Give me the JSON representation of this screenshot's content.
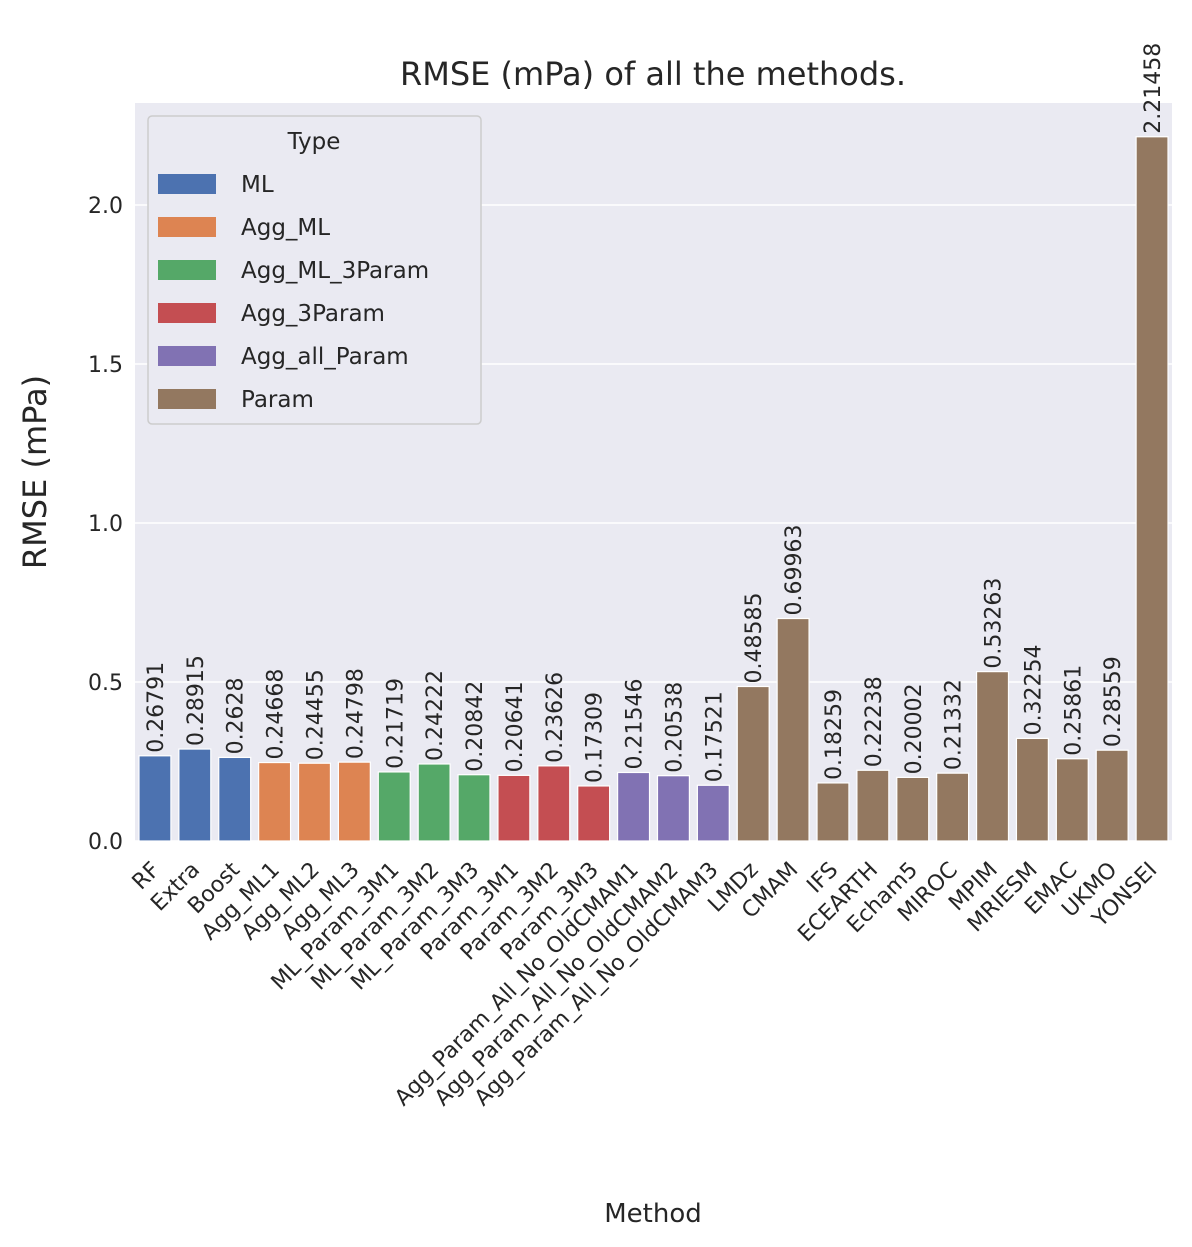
{
  "chart_data": {
    "type": "bar",
    "title": "RMSE (mPa) of all the methods.",
    "xlabel": "Method",
    "ylabel": "RMSE (mPa)",
    "ylim": [
      0,
      2.32
    ],
    "yticks": [
      "0.0",
      "0.5",
      "1.0",
      "1.5",
      "2.0"
    ],
    "grid": true,
    "legend": {
      "title": "Type",
      "placement": "top-left",
      "entries": [
        "ML",
        "Agg_ML",
        "Agg_ML_3Param",
        "Agg_3Param",
        "Agg_all_Param",
        "Param"
      ]
    },
    "type_colors": {
      "ML": "#4c72b0",
      "Agg_ML": "#dd8452",
      "Agg_ML_3Param": "#55a868",
      "Agg_3Param": "#c44e52",
      "Agg_all_Param": "#8172b3",
      "Param": "#937860"
    },
    "categories": [
      "RF",
      "Extra",
      "Boost",
      "Agg_ML1",
      "Agg_ML2",
      "Agg_ML3",
      "ML_Param_3M1",
      "ML_Param_3M2",
      "ML_Param_3M3",
      "Param_3M1",
      "Param_3M2",
      "Param_3M3",
      "Agg_Param_All_No_OldCMAM1",
      "Agg_Param_All_No_OldCMAM2",
      "Agg_Param_All_No_OldCMAM3",
      "LMDz",
      "CMAM",
      "IFS",
      "ECEARTH",
      "Echam5",
      "MIROC",
      "MPIM",
      "MRIESM",
      "EMAC",
      "UKMO",
      "YONSEI"
    ],
    "values": [
      0.26791,
      0.28915,
      0.2628,
      0.24668,
      0.24455,
      0.24798,
      0.21719,
      0.24222,
      0.20842,
      0.20641,
      0.23626,
      0.17309,
      0.21546,
      0.20538,
      0.17521,
      0.48585,
      0.69963,
      0.18259,
      0.22238,
      0.20002,
      0.21332,
      0.53263,
      0.32254,
      0.25861,
      0.28559,
      2.21458
    ],
    "value_labels": [
      "0.26791",
      "0.28915",
      "0.2628",
      "0.24668",
      "0.24455",
      "0.24798",
      "0.21719",
      "0.24222",
      "0.20842",
      "0.20641",
      "0.23626",
      "0.17309",
      "0.21546",
      "0.20538",
      "0.17521",
      "0.48585",
      "0.69963",
      "0.18259",
      "0.22238",
      "0.20002",
      "0.21332",
      "0.53263",
      "0.32254",
      "0.25861",
      "0.28559",
      "2.21458"
    ],
    "types": [
      "ML",
      "ML",
      "ML",
      "Agg_ML",
      "Agg_ML",
      "Agg_ML",
      "Agg_ML_3Param",
      "Agg_ML_3Param",
      "Agg_ML_3Param",
      "Agg_3Param",
      "Agg_3Param",
      "Agg_3Param",
      "Agg_all_Param",
      "Agg_all_Param",
      "Agg_all_Param",
      "Param",
      "Param",
      "Param",
      "Param",
      "Param",
      "Param",
      "Param",
      "Param",
      "Param",
      "Param",
      "Param"
    ]
  }
}
